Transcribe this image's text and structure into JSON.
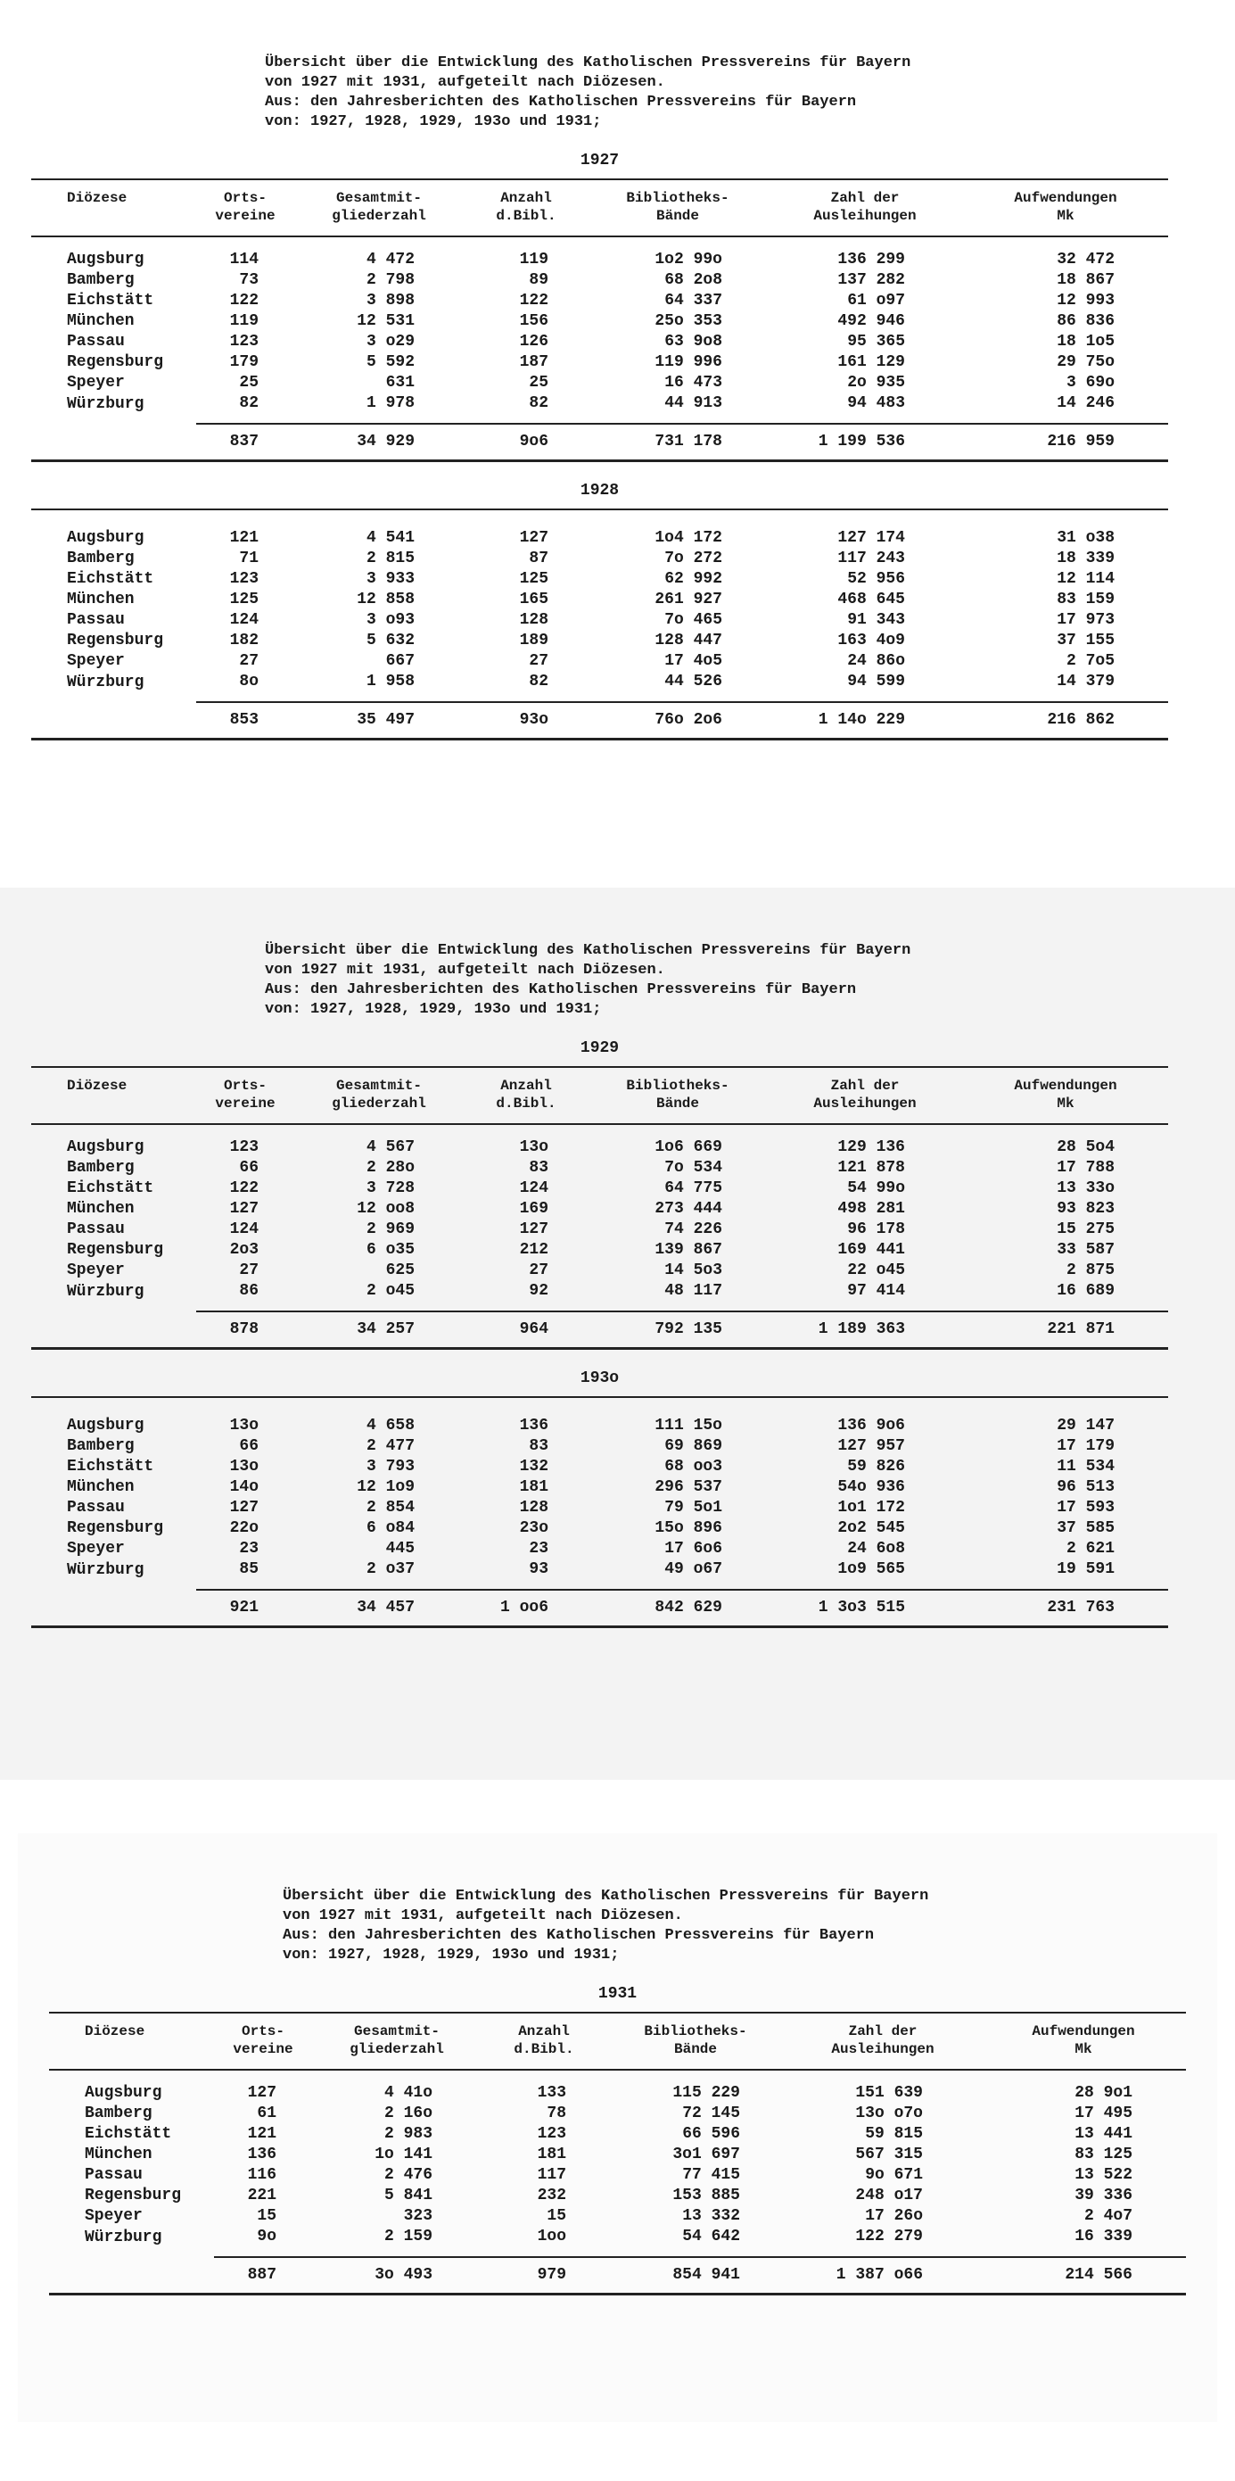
{
  "columns": [
    [
      "Diözese"
    ],
    [
      "Orts-",
      "vereine"
    ],
    [
      "Gesamtmit-",
      "gliederzahl"
    ],
    [
      "Anzahl",
      "d.Bibl."
    ],
    [
      "Bibliotheks-",
      "Bände"
    ],
    [
      "Zahl der",
      "Ausleihungen"
    ],
    [
      "Aufwendungen",
      "Mk"
    ]
  ],
  "sections": [
    {
      "heading": [
        "Übersicht über die Entwicklung des Katholischen Pressvereins für Bayern",
        "von 1927 mit 1931, aufgeteilt nach Diözesen.",
        "Aus: den Jahresberichten des Katholischen Pressvereins für Bayern",
        "von: 1927, 1928, 1929, 193o und 1931;"
      ],
      "tables": [
        {
          "year": "1927",
          "rows": [
            [
              "Augsburg",
              "114",
              "4 472",
              "119",
              "1o2 99o",
              "136 299",
              "32 472"
            ],
            [
              "Bamberg",
              "73",
              "2 798",
              "89",
              "68 2o8",
              "137 282",
              "18 867"
            ],
            [
              "Eichstätt",
              "122",
              "3 898",
              "122",
              "64 337",
              "61 o97",
              "12 993"
            ],
            [
              "München",
              "119",
              "12 531",
              "156",
              "25o 353",
              "492 946",
              "86 836"
            ],
            [
              "Passau",
              "123",
              "3 o29",
              "126",
              "63 9o8",
              "95 365",
              "18 1o5"
            ],
            [
              "Regensburg",
              "179",
              "5 592",
              "187",
              "119 996",
              "161 129",
              "29 75o"
            ],
            [
              "Speyer",
              "25",
              "631",
              "25",
              "16 473",
              "2o 935",
              "3 69o"
            ],
            [
              "Würzburg",
              "82",
              "1 978",
              "82",
              "44 913",
              "94 483",
              "14 246"
            ]
          ],
          "total": [
            "837",
            "34 929",
            "9o6",
            "731 178",
            "1 199 536",
            "216 959"
          ]
        },
        {
          "year": "1928",
          "rows": [
            [
              "Augsburg",
              "121",
              "4 541",
              "127",
              "1o4 172",
              "127 174",
              "31 o38"
            ],
            [
              "Bamberg",
              "71",
              "2 815",
              "87",
              "7o 272",
              "117 243",
              "18 339"
            ],
            [
              "Eichstätt",
              "123",
              "3 933",
              "125",
              "62 992",
              "52 956",
              "12 114"
            ],
            [
              "München",
              "125",
              "12 858",
              "165",
              "261 927",
              "468 645",
              "83 159"
            ],
            [
              "Passau",
              "124",
              "3 o93",
              "128",
              "7o 465",
              "91 343",
              "17 973"
            ],
            [
              "Regensburg",
              "182",
              "5 632",
              "189",
              "128 447",
              "163 4o9",
              "37 155"
            ],
            [
              "Speyer",
              "27",
              "667",
              "27",
              "17 4o5",
              "24 86o",
              "2 7o5"
            ],
            [
              "Würzburg",
              "8o",
              "1 958",
              "82",
              "44 526",
              "94 599",
              "14 379"
            ]
          ],
          "total": [
            "853",
            "35 497",
            "93o",
            "76o 2o6",
            "1 14o 229",
            "216 862"
          ]
        }
      ]
    },
    {
      "heading": [
        "Übersicht über die Entwicklung des Katholischen Pressvereins für Bayern",
        "von 1927 mit 1931, aufgeteilt nach Diözesen.",
        "Aus: den Jahresberichten des Katholischen Pressvereins für Bayern",
        "von: 1927, 1928, 1929, 193o und 1931;"
      ],
      "tables": [
        {
          "year": "1929",
          "rows": [
            [
              "Augsburg",
              "123",
              "4 567",
              "13o",
              "1o6 669",
              "129 136",
              "28 5o4"
            ],
            [
              "Bamberg",
              "66",
              "2 28o",
              "83",
              "7o 534",
              "121 878",
              "17 788"
            ],
            [
              "Eichstätt",
              "122",
              "3 728",
              "124",
              "64 775",
              "54 99o",
              "13 33o"
            ],
            [
              "München",
              "127",
              "12 oo8",
              "169",
              "273 444",
              "498 281",
              "93 823"
            ],
            [
              "Passau",
              "124",
              "2 969",
              "127",
              "74 226",
              "96 178",
              "15 275"
            ],
            [
              "Regensburg",
              "2o3",
              "6 o35",
              "212",
              "139 867",
              "169 441",
              "33 587"
            ],
            [
              "Speyer",
              "27",
              "625",
              "27",
              "14 5o3",
              "22 o45",
              "2 875"
            ],
            [
              "Würzburg",
              "86",
              "2 o45",
              "92",
              "48 117",
              "97 414",
              "16 689"
            ]
          ],
          "total": [
            "878",
            "34 257",
            "964",
            "792 135",
            "1 189 363",
            "221 871"
          ]
        },
        {
          "year": "193o",
          "rows": [
            [
              "Augsburg",
              "13o",
              "4 658",
              "136",
              "111 15o",
              "136 9o6",
              "29 147"
            ],
            [
              "Bamberg",
              "66",
              "2 477",
              "83",
              "69 869",
              "127 957",
              "17 179"
            ],
            [
              "Eichstätt",
              "13o",
              "3 793",
              "132",
              "68 oo3",
              "59 826",
              "11 534"
            ],
            [
              "München",
              "14o",
              "12 1o9",
              "181",
              "296 537",
              "54o 936",
              "96 513"
            ],
            [
              "Passau",
              "127",
              "2 854",
              "128",
              "79 5o1",
              "1o1 172",
              "17 593"
            ],
            [
              "Regensburg",
              "22o",
              "6 o84",
              "23o",
              "15o 896",
              "2o2 545",
              "37 585"
            ],
            [
              "Speyer",
              "23",
              "445",
              "23",
              "17 6o6",
              "24 6o8",
              "2 621"
            ],
            [
              "Würzburg",
              "85",
              "2 o37",
              "93",
              "49 o67",
              "1o9 565",
              "19 591"
            ]
          ],
          "total": [
            "921",
            "34 457",
            "1 oo6",
            "842 629",
            "1 3o3 515",
            "231 763"
          ]
        }
      ]
    },
    {
      "heading": [
        "Übersicht über die Entwicklung des Katholischen Pressvereins für Bayern",
        "von 1927 mit 1931, aufgeteilt nach Diözesen.",
        "Aus: den Jahresberichten des Katholischen Pressvereins für Bayern",
        "von: 1927, 1928, 1929, 193o und 1931;"
      ],
      "tables": [
        {
          "year": "1931",
          "rows": [
            [
              "Augsburg",
              "127",
              "4 41o",
              "133",
              "115 229",
              "151 639",
              "28 9o1"
            ],
            [
              "Bamberg",
              "61",
              "2 16o",
              "78",
              "72 145",
              "13o o7o",
              "17 495"
            ],
            [
              "Eichstätt",
              "121",
              "2 983",
              "123",
              "66 596",
              "59 815",
              "13 441"
            ],
            [
              "München",
              "136",
              "1o 141",
              "181",
              "3o1 697",
              "567 315",
              "83 125"
            ],
            [
              "Passau",
              "116",
              "2 476",
              "117",
              "77 415",
              "9o 671",
              "13 522"
            ],
            [
              "Regensburg",
              "221",
              "5 841",
              "232",
              "153 885",
              "248 o17",
              "39 336"
            ],
            [
              "Speyer",
              "15",
              "323",
              "15",
              "13 332",
              "17 26o",
              "2 4o7"
            ],
            [
              "Würzburg",
              "9o",
              "2 159",
              "1oo",
              "54 642",
              "122 279",
              "16 339"
            ]
          ],
          "total": [
            "887",
            "3o 493",
            "979",
            "854 941",
            "1 387 o66",
            "214 566"
          ]
        }
      ]
    }
  ]
}
